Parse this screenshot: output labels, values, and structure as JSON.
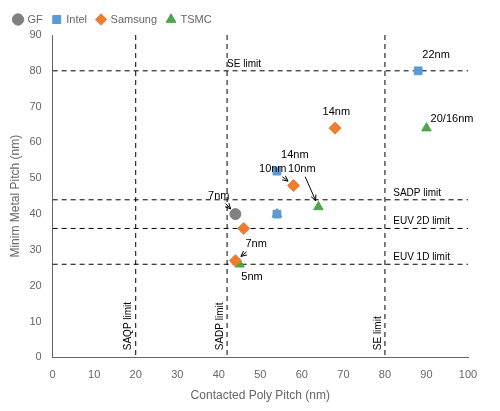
{
  "chart_data": {
    "type": "scatter",
    "xlabel": "Contacted Poly Pitch (nm)",
    "ylabel": "Minim Metal Pitch (nm)",
    "xlim": [
      0,
      100
    ],
    "ylim": [
      0,
      90
    ],
    "xticks": [
      0,
      10,
      20,
      30,
      40,
      50,
      60,
      70,
      80,
      90,
      100
    ],
    "yticks": [
      0,
      10,
      20,
      30,
      40,
      50,
      60,
      70,
      80,
      90
    ],
    "grid": false,
    "legend": "upper left",
    "series": [
      {
        "name": "GF",
        "color": "#808080",
        "marker": "circle",
        "x": [
          44
        ],
        "values": [
          40
        ]
      },
      {
        "name": "Intel",
        "color": "#5b9bd5",
        "marker": "square",
        "x": [
          54,
          54,
          88
        ],
        "values": [
          52,
          40,
          80
        ]
      },
      {
        "name": "Samsung",
        "color": "#ed7d31",
        "marker": "diamond",
        "x": [
          46,
          44,
          58,
          68
        ],
        "values": [
          36,
          27,
          48,
          64
        ]
      },
      {
        "name": "TSMC",
        "color": "#4ea64b",
        "marker": "triangle",
        "x": [
          54,
          45,
          64,
          90
        ],
        "values": [
          40,
          26,
          42,
          64
        ]
      }
    ],
    "hlines": [
      {
        "value": 80,
        "label": "SE limit",
        "label_x": 42
      },
      {
        "value": 44,
        "label": "SADP limit",
        "label_x": 82
      },
      {
        "value": 36,
        "label": "EUV 2D limit",
        "label_x": 82
      },
      {
        "value": 26,
        "label": "EUV 1D limit",
        "label_x": 82
      }
    ],
    "vlines": [
      {
        "value": 20,
        "label": "SAQP limit",
        "label_y": 2
      },
      {
        "value": 42,
        "label": "SADP limit",
        "label_y": 2
      },
      {
        "value": 80,
        "label": "SE limit",
        "label_y": 2
      }
    ],
    "annotations": [
      {
        "text": "7nm",
        "x": 44,
        "y": 40,
        "text_x": 40,
        "text_y": 43.5
      },
      {
        "text": "10nm",
        "x": 58,
        "y": 48,
        "text_x": 53,
        "text_y": 51
      },
      {
        "text": "10nm",
        "x": 64,
        "y": 42,
        "text_x": 60,
        "text_y": 51
      },
      {
        "text": "7nm",
        "x": 44,
        "y": 27,
        "text_x": 49,
        "text_y": 30
      },
      {
        "text": "5nm",
        "x": 45,
        "y": 26,
        "text_x": 48,
        "text_y": 21
      },
      {
        "text": "14nm",
        "text_x": 65,
        "text_y": 67
      },
      {
        "text": "14nm",
        "text_x": 55,
        "text_y": 55
      },
      {
        "text": "22nm",
        "text_x": 89,
        "text_y": 83
      },
      {
        "text": "20/16nm",
        "text_x": 91,
        "text_y": 65
      }
    ]
  }
}
